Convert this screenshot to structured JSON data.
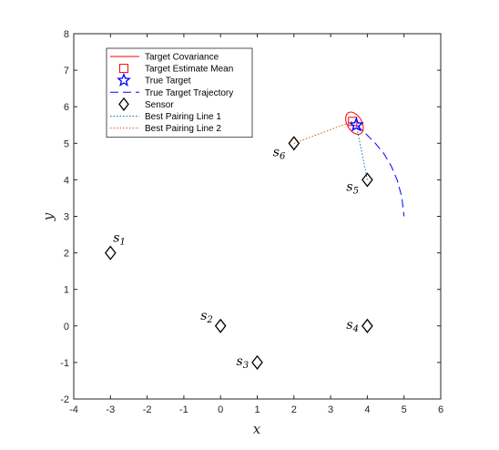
{
  "chart_data": {
    "type": "scatter",
    "xlabel": "x",
    "ylabel": "y",
    "xlim": [
      -4,
      6
    ],
    "ylim": [
      -2,
      8
    ],
    "xticks": [
      -4,
      -3,
      -2,
      -1,
      0,
      1,
      2,
      3,
      4,
      5,
      6
    ],
    "yticks": [
      -2,
      -1,
      0,
      1,
      2,
      3,
      4,
      5,
      6,
      7,
      8
    ],
    "grid": false,
    "legend_position": "top-left",
    "legend": [
      {
        "label": "Target Covariance",
        "style": "solid-line",
        "color": "#ff0000"
      },
      {
        "label": "Target Estimate Mean",
        "style": "square",
        "color": "#ff0000"
      },
      {
        "label": "True Target",
        "style": "star",
        "color": "#0000ff"
      },
      {
        "label": "True Target Trajectory",
        "style": "dashed-line",
        "color": "#0000ff"
      },
      {
        "label": "Sensor",
        "style": "diamond",
        "color": "#000000"
      },
      {
        "label": "Best Pairing Line 1",
        "style": "dotted-line",
        "color": "#0072bd"
      },
      {
        "label": "Best Pairing Line 2",
        "style": "dotted-line",
        "color": "#d95319"
      }
    ],
    "sensors": [
      {
        "name": "s",
        "index": "1",
        "x": -3,
        "y": 2
      },
      {
        "name": "s",
        "index": "2",
        "x": 0,
        "y": 0
      },
      {
        "name": "s",
        "index": "3",
        "x": 1,
        "y": -1
      },
      {
        "name": "s",
        "index": "4",
        "x": 4,
        "y": 0
      },
      {
        "name": "s",
        "index": "5",
        "x": 4,
        "y": 4
      },
      {
        "name": "s",
        "index": "6",
        "x": 2,
        "y": 5
      }
    ],
    "target_estimate_mean": {
      "x": 3.6,
      "y": 5.6
    },
    "true_target": {
      "x": 3.7,
      "y": 5.5
    },
    "target_covariance": {
      "cx": 3.65,
      "cy": 5.55,
      "rx": 0.33,
      "ry": 0.2,
      "angle_deg": -60
    },
    "true_target_trajectory": {
      "x": [
        3.7,
        3.95,
        4.2,
        4.45,
        4.65,
        4.82,
        4.94,
        5.0
      ],
      "y": [
        5.5,
        5.27,
        5.02,
        4.72,
        4.38,
        3.98,
        3.52,
        3.0
      ]
    },
    "best_pairing_line_1": {
      "from": {
        "x": 4,
        "y": 4
      },
      "to": {
        "x": 3.7,
        "y": 5.5
      }
    },
    "best_pairing_line_2": {
      "from": {
        "x": 2,
        "y": 5
      },
      "to": {
        "x": 3.6,
        "y": 5.6
      }
    }
  }
}
